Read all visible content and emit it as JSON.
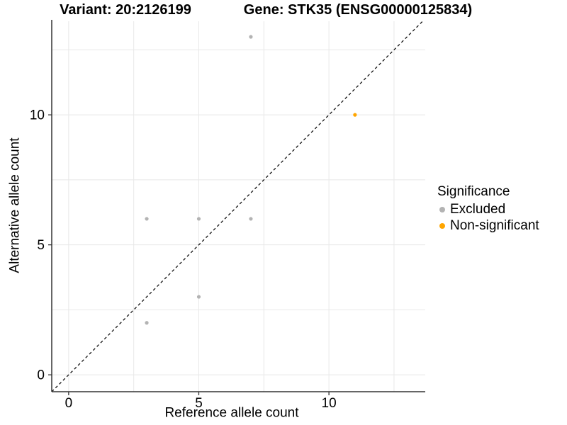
{
  "header": {
    "variant_title": "Variant: 20:2126199",
    "gene_title": "Gene: STK35 (ENSG00000125834)"
  },
  "chart_data": {
    "type": "scatter",
    "xlabel": "Reference allele count",
    "ylabel": "Alternative allele count",
    "xlim": [
      -0.65,
      13.7
    ],
    "ylim": [
      -0.65,
      13.6
    ],
    "xticks": [
      0,
      5,
      10
    ],
    "yticks": [
      0,
      5,
      10
    ],
    "grid_values": [
      0,
      2.5,
      5,
      7.5,
      10,
      12.5
    ],
    "grid_on": true,
    "identity_line": {
      "slope": 1,
      "intercept": 0,
      "style": "dashed",
      "color": "#111111"
    },
    "series": [
      {
        "name": "Excluded",
        "color": "#B3B3B3",
        "points": [
          [
            3,
            2
          ],
          [
            3,
            6
          ],
          [
            5,
            3
          ],
          [
            5,
            6
          ],
          [
            7,
            6
          ],
          [
            7,
            13
          ]
        ]
      },
      {
        "name": "Non-significant",
        "color": "#FFA500",
        "points": [
          [
            11,
            10
          ]
        ]
      }
    ],
    "legend_position": "right"
  },
  "legend": {
    "title": "Significance",
    "entries": [
      {
        "label": "Excluded",
        "color": "#B3B3B3"
      },
      {
        "label": "Non-significant",
        "color": "#FFA500"
      }
    ]
  },
  "colors": {
    "grid": "#E8E8E8",
    "axis": "#333333",
    "excluded_point": "#B3B3B3",
    "nonsignificant_point": "#FFA500"
  }
}
